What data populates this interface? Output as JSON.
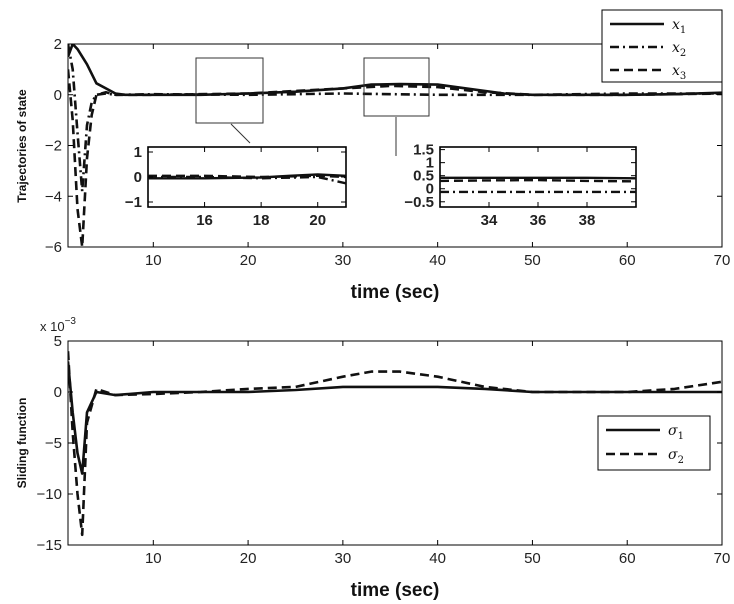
{
  "chart_data": [
    {
      "type": "line",
      "ylabel": "Trajectories of state",
      "xlabel": "time (sec)",
      "xlim": [
        1,
        70
      ],
      "ylim": [
        -6,
        2
      ],
      "xticks": [
        10,
        20,
        30,
        40,
        50,
        60,
        70
      ],
      "yticks": [
        -6,
        -4,
        -2,
        0,
        2
      ],
      "legend": {
        "position": "top-right"
      },
      "series": [
        {
          "name": "x1",
          "legend_base": "x",
          "legend_sub": "1",
          "style": "solid",
          "x": [
            1,
            1.5,
            2,
            3,
            4,
            5,
            6,
            7,
            10,
            15,
            20,
            25,
            30,
            33,
            36,
            40,
            43,
            47,
            50,
            55,
            60,
            65,
            70
          ],
          "y": [
            1.5,
            2,
            1.8,
            1.2,
            0.45,
            0.25,
            0.05,
            0.0,
            0.0,
            0.0,
            0.05,
            0.12,
            0.25,
            0.4,
            0.42,
            0.4,
            0.25,
            0.05,
            0.0,
            0.0,
            0.0,
            0.02,
            0.08
          ]
        },
        {
          "name": "x2",
          "legend_base": "x",
          "legend_sub": "2",
          "style": "dashdot",
          "x": [
            1,
            1.5,
            2,
            2.5,
            3,
            3.5,
            4,
            5,
            6,
            10,
            20,
            30,
            40,
            50,
            60,
            70
          ],
          "y": [
            2,
            1.0,
            -1.5,
            -3.8,
            -1.2,
            -0.3,
            0.0,
            0.05,
            0.0,
            0.02,
            0.0,
            0.05,
            0.0,
            0.0,
            0.05,
            0.05
          ]
        },
        {
          "name": "x3",
          "legend_base": "x",
          "legend_sub": "3",
          "style": "dashed",
          "x": [
            1,
            1.5,
            2,
            2.5,
            3,
            3.5,
            4,
            5,
            6,
            10,
            20,
            30,
            35,
            40,
            45,
            50,
            60,
            70
          ],
          "y": [
            1.0,
            -1.0,
            -4.5,
            -6.0,
            -2.5,
            -0.8,
            0.0,
            0.1,
            0.0,
            0.0,
            0.05,
            0.25,
            0.35,
            0.3,
            0.1,
            0.0,
            0.0,
            0.05
          ]
        }
      ],
      "insets": [
        {
          "xlim": [
            14,
            21
          ],
          "ylim": [
            -1.2,
            1.2
          ],
          "xticks": [
            16,
            18,
            20
          ],
          "yticks": [
            -1,
            0,
            1
          ],
          "series": [
            {
              "name": "x1",
              "x": [
                14,
                16,
                18,
                19,
                20,
                21
              ],
              "y": [
                -0.05,
                -0.05,
                -0.02,
                0.05,
                0.1,
                0.05
              ]
            },
            {
              "name": "x2",
              "x": [
                14,
                16,
                18,
                20,
                21
              ],
              "y": [
                0.0,
                0.0,
                -0.05,
                0.0,
                -0.25
              ]
            },
            {
              "name": "x3",
              "x": [
                14,
                16,
                18,
                20,
                21
              ],
              "y": [
                0.05,
                0.05,
                0.0,
                0.05,
                0.0
              ]
            }
          ]
        },
        {
          "xlim": [
            32,
            40
          ],
          "ylim": [
            -0.7,
            1.6
          ],
          "xticks": [
            34,
            36,
            38
          ],
          "yticks": [
            -0.5,
            0,
            0.5,
            1,
            1.5
          ],
          "series": [
            {
              "name": "x1",
              "x": [
                32,
                34,
                36,
                38,
                40
              ],
              "y": [
                0.42,
                0.42,
                0.42,
                0.42,
                0.4
              ]
            },
            {
              "name": "x2",
              "x": [
                32,
                34,
                36,
                38,
                40
              ],
              "y": [
                -0.12,
                -0.12,
                -0.12,
                -0.12,
                -0.12
              ]
            },
            {
              "name": "x3",
              "x": [
                32,
                34,
                36,
                38,
                40
              ],
              "y": [
                0.3,
                0.32,
                0.33,
                0.3,
                0.28
              ]
            }
          ]
        }
      ]
    },
    {
      "type": "line",
      "ylabel": "Sliding function",
      "xlabel": "time (sec)",
      "xlim": [
        1,
        70
      ],
      "ylim": [
        -15,
        5
      ],
      "xticks": [
        10,
        20,
        30,
        40,
        50,
        60,
        70
      ],
      "yticks": [
        -15,
        -10,
        -5,
        0,
        5
      ],
      "y_multiplier": "x 10",
      "y_multiplier_exp": "−3",
      "legend": {
        "position": "lower-right"
      },
      "series": [
        {
          "name": "sigma1",
          "legend_base": "σ",
          "legend_sub": "1",
          "style": "solid",
          "x": [
            1,
            1.5,
            2,
            2.5,
            3,
            4,
            6,
            10,
            20,
            25,
            30,
            35,
            40,
            45,
            50,
            55,
            60,
            65,
            70
          ],
          "y": [
            3,
            -2,
            -6,
            -8,
            -2,
            0.0,
            -0.3,
            0.0,
            0.0,
            0.2,
            0.5,
            0.5,
            0.5,
            0.3,
            0.0,
            0.0,
            0.0,
            0.0,
            0.0
          ]
        },
        {
          "name": "sigma2",
          "legend_base": "σ",
          "legend_sub": "2",
          "style": "dashed",
          "x": [
            1,
            1.5,
            2,
            2.5,
            3,
            4,
            6,
            10,
            15,
            20,
            25,
            30,
            33,
            36,
            40,
            45,
            50,
            55,
            60,
            65,
            70
          ],
          "y": [
            4,
            -4,
            -10,
            -14,
            -3,
            0.3,
            -0.3,
            -0.2,
            0.0,
            0.3,
            0.5,
            1.5,
            2.0,
            2.0,
            1.5,
            0.5,
            0.0,
            0.0,
            0.0,
            0.3,
            1.0
          ]
        }
      ]
    }
  ]
}
